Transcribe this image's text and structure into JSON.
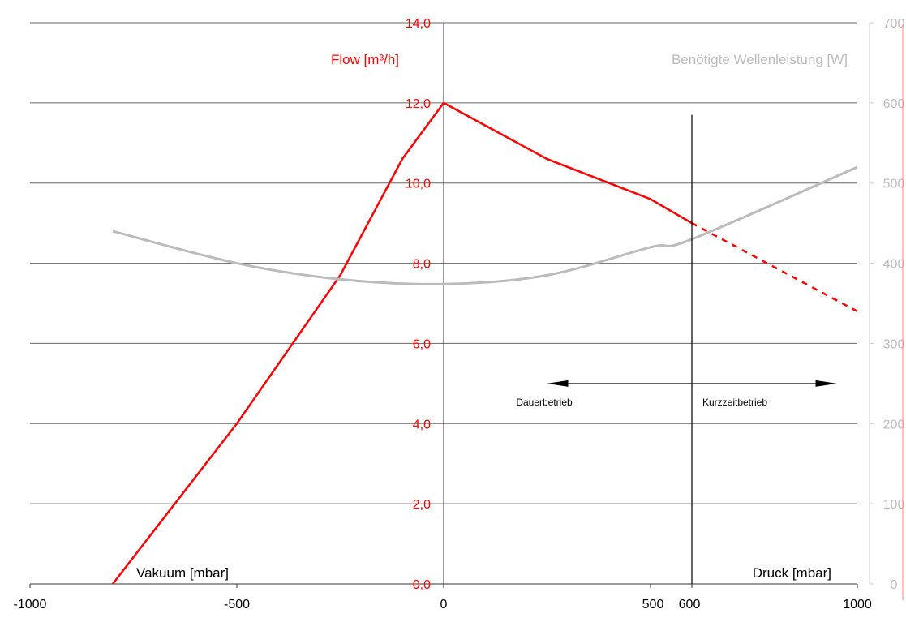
{
  "chart_data": {
    "type": "line",
    "x_axis": {
      "range": [
        -1000,
        1000
      ],
      "ticks": [
        -1000,
        -500,
        0,
        500,
        600,
        1000
      ],
      "tick_labels": [
        "-1000",
        "-500",
        "0",
        "500",
        "600",
        "1000"
      ],
      "left_label": "Vakuum [mbar]",
      "right_label": "Druck [mbar]"
    },
    "y_axis_left": {
      "label": "Flow [m³/h]",
      "range": [
        0,
        14
      ],
      "ticks": [
        0,
        2,
        4,
        6,
        8,
        10,
        12,
        14
      ],
      "tick_labels": [
        "0,0",
        "2,0",
        "4,0",
        "6,0",
        "8,0",
        "10,0",
        "12,0",
        "14,0"
      ],
      "color": "#ff0000"
    },
    "y_axis_right": {
      "label": "Benötigte Wellenleistung [W]",
      "range": [
        0,
        700
      ],
      "ticks": [
        0,
        100,
        200,
        300,
        400,
        500,
        600,
        700
      ],
      "tick_labels": [
        "0",
        "100",
        "200",
        "300",
        "400",
        "500",
        "600",
        "700"
      ],
      "color": "#bbbbbb"
    },
    "grid": true,
    "series": [
      {
        "axis": "left",
        "color": "#ff0000",
        "style": "solid",
        "x": [
          -800,
          -500,
          -250,
          -100,
          0,
          250,
          500,
          600
        ],
        "y": [
          0,
          4.0,
          7.7,
          10.6,
          12.0,
          10.6,
          9.6,
          9.0
        ]
      },
      {
        "axis": "left",
        "color": "#ff0000",
        "style": "dashed",
        "x": [
          600,
          1000
        ],
        "y": [
          9.0,
          6.8
        ]
      },
      {
        "axis": "right",
        "color": "#bbbbbb",
        "style": "solid",
        "x": [
          -800,
          -500,
          -250,
          0,
          250,
          500,
          600,
          1000
        ],
        "y": [
          440,
          400,
          380,
          374,
          385,
          420,
          430,
          520
        ]
      }
    ],
    "vline": {
      "x": 600,
      "y_top": 11.7
    },
    "annotations": {
      "left_arrow_label": "Dauerbetrieb",
      "right_arrow_label": "Kurzzeitbetrieb",
      "arrow_y": 5.0,
      "arrow_left_x": 250,
      "arrow_right_x": 950
    }
  }
}
